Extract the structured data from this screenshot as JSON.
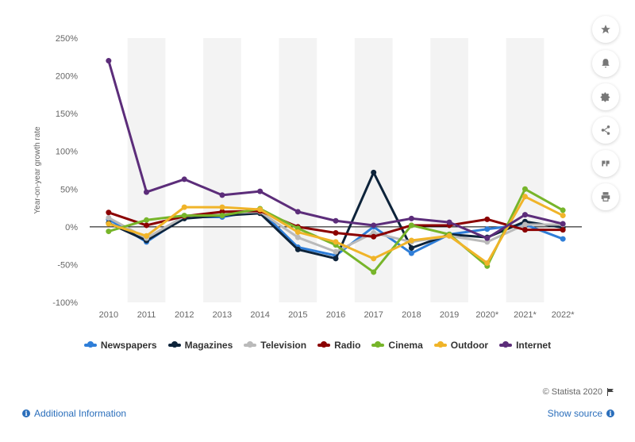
{
  "chart_data": {
    "type": "line",
    "ylabel": "Year-on-year growth rate",
    "ylim": [
      -100,
      250
    ],
    "y_ticks": [
      250,
      200,
      150,
      100,
      50,
      0,
      -50,
      -100
    ],
    "y_tick_labels": [
      "250%",
      "200%",
      "150%",
      "100%",
      "50%",
      "0%",
      "-50%",
      "-100%"
    ],
    "categories": [
      "2010",
      "2011",
      "2012",
      "2013",
      "2014",
      "2015",
      "2016",
      "2017",
      "2018",
      "2019",
      "2020*",
      "2021*",
      "2022*"
    ],
    "grid": "alternating vertical bands",
    "legend_position": "bottom",
    "series": [
      {
        "name": "Newspapers",
        "color": "#2f7ed8",
        "values": [
          10,
          -20,
          13,
          13,
          22,
          -27,
          -38,
          0,
          -35,
          -10,
          -3,
          3,
          -16
        ]
      },
      {
        "name": "Magazines",
        "color": "#0d233a",
        "values": [
          5,
          -18,
          11,
          15,
          18,
          -30,
          -42,
          72,
          -28,
          -10,
          -14,
          7,
          -1
        ]
      },
      {
        "name": "Television",
        "color": "#bababa",
        "values": [
          12,
          -15,
          14,
          18,
          20,
          -14,
          -33,
          -8,
          -20,
          -12,
          -20,
          3,
          3
        ]
      },
      {
        "name": "Radio",
        "color": "#8b0000",
        "values": [
          19,
          2,
          14,
          20,
          21,
          0,
          -8,
          -13,
          2,
          2,
          10,
          -4,
          -4
        ]
      },
      {
        "name": "Cinema",
        "color": "#77b52a",
        "values": [
          -6,
          9,
          15,
          15,
          24,
          -2,
          -24,
          -60,
          2,
          -10,
          -52,
          50,
          22
        ]
      },
      {
        "name": "Outdoor",
        "color": "#f0b429",
        "values": [
          4,
          -12,
          26,
          26,
          23,
          -7,
          -20,
          -42,
          -18,
          -12,
          -48,
          40,
          15
        ]
      },
      {
        "name": "Internet",
        "color": "#5c2d7a",
        "values": [
          220,
          46,
          63,
          42,
          47,
          20,
          8,
          2,
          11,
          6,
          -15,
          16,
          4
        ]
      }
    ]
  },
  "footer": {
    "copyright": "© Statista 2020",
    "additional_info": "Additional Information",
    "show_source": "Show source"
  },
  "icons": {
    "side_buttons": [
      "star-icon",
      "bell-icon",
      "gear-icon",
      "share-icon",
      "quote-icon",
      "print-icon"
    ]
  }
}
